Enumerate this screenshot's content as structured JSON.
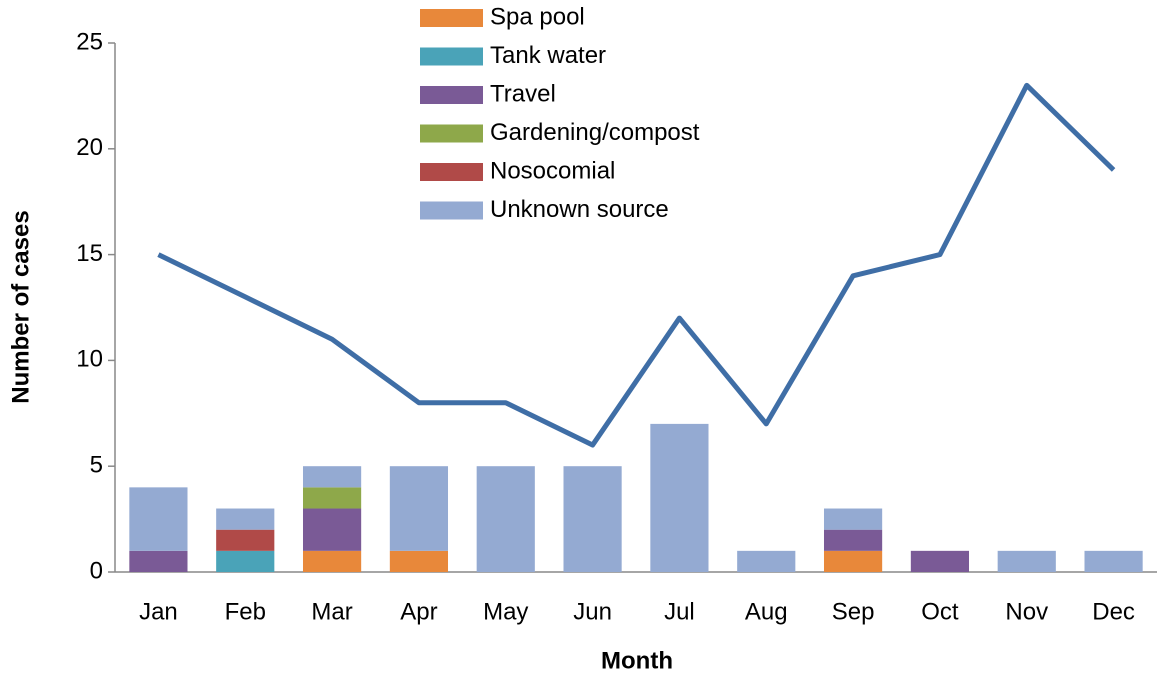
{
  "chart_data": {
    "type": "bar",
    "categories": [
      "Jan",
      "Feb",
      "Mar",
      "Apr",
      "May",
      "Jun",
      "Jul",
      "Aug",
      "Sep",
      "Oct",
      "Nov",
      "Dec"
    ],
    "series": [
      {
        "name": "Spa pool",
        "color": "#e8883a",
        "values": [
          0,
          0,
          1,
          1,
          0,
          0,
          0,
          0,
          1,
          0,
          0,
          0
        ]
      },
      {
        "name": "Tank water",
        "color": "#4aa3b8",
        "values": [
          0,
          1,
          0,
          0,
          0,
          0,
          0,
          0,
          0,
          0,
          0,
          0
        ]
      },
      {
        "name": "Travel",
        "color": "#7a5a96",
        "values": [
          1,
          0,
          2,
          0,
          0,
          0,
          0,
          0,
          1,
          1,
          0,
          0
        ]
      },
      {
        "name": "Gardening/compost",
        "color": "#8ea84a",
        "values": [
          0,
          0,
          1,
          0,
          0,
          0,
          0,
          0,
          0,
          0,
          0,
          0
        ]
      },
      {
        "name": "Nosocomial",
        "color": "#b04a48",
        "values": [
          0,
          1,
          0,
          0,
          0,
          0,
          0,
          0,
          0,
          0,
          0,
          0
        ]
      },
      {
        "name": "Unknown source",
        "color": "#94aad2",
        "values": [
          3,
          1,
          1,
          4,
          5,
          5,
          7,
          1,
          1,
          0,
          1,
          1
        ]
      }
    ],
    "line": {
      "type": "line",
      "color": "#3f6ea6",
      "values": [
        15,
        13,
        11,
        8,
        8,
        6,
        12,
        7,
        14,
        15,
        23,
        19
      ]
    },
    "stacked": true,
    "xlabel": "Month",
    "ylabel": "Number of cases",
    "ylim": [
      0,
      25
    ],
    "yticks": [
      0,
      5,
      10,
      15,
      20,
      25
    ],
    "legend": "top"
  }
}
